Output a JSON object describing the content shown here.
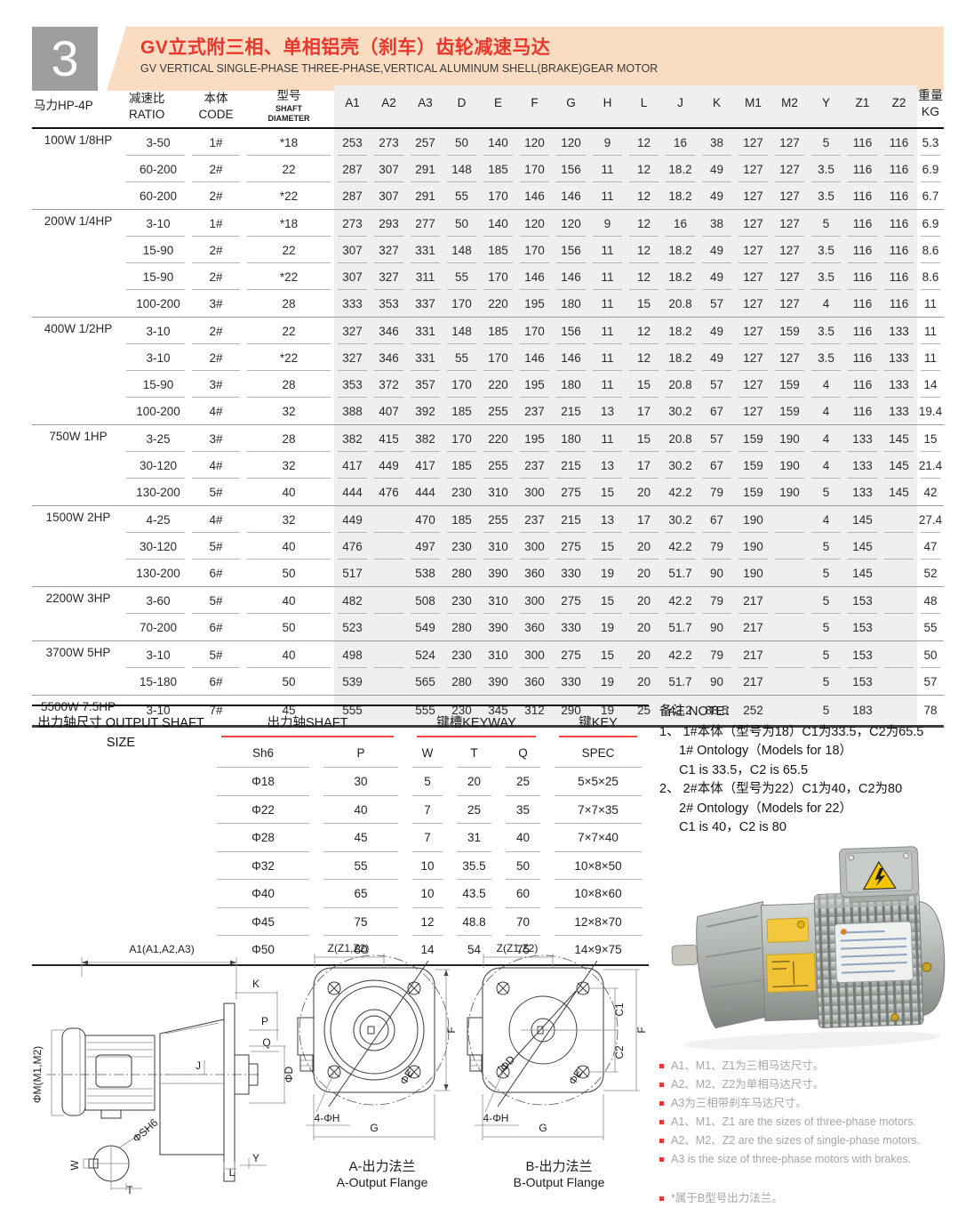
{
  "page": {
    "badge": "3",
    "title_zh": "GV立式附三相、单相铝壳（刹车）齿轮减速马达",
    "title_en": "GV VERTICAL SINGLE-PHASE THREE-PHASE,VERTICAL ALUMINUM SHELL(BRAKE)GEAR MOTOR",
    "colors": {
      "accent_red": "#e8372c",
      "band_peach": "#f9dcc2",
      "table_band_gray": "#efefef",
      "badge_gray": "#9e9e9e",
      "bullet_gray_text": "#a6a6a6"
    }
  },
  "main_table": {
    "col_headers": {
      "power": "马力HP-4P",
      "ratio_zh": "减速比",
      "ratio_en": "RATIO",
      "code_zh": "本体",
      "code_en": "CODE",
      "model_zh": "型号",
      "model_en1": "SHAFT",
      "model_en2": "DIAMETER",
      "dims": [
        "A1",
        "A2",
        "A3",
        "D",
        "E",
        "F",
        "G",
        "H",
        "L",
        "J",
        "K",
        "M1",
        "M2",
        "Y",
        "Z1",
        "Z2"
      ],
      "weight": "重量KG"
    },
    "groups": [
      {
        "power": "100W 1/8HP",
        "rows": [
          {
            "ratio": "3-50",
            "code": "1#",
            "model": "*18",
            "dims": [
              "253",
              "273",
              "257",
              "50",
              "140",
              "120",
              "120",
              "9",
              "12",
              "16",
              "38",
              "127",
              "127",
              "5",
              "116",
              "116"
            ],
            "weight": "5.3"
          },
          {
            "ratio": "60-200",
            "code": "2#",
            "model": "22",
            "dims": [
              "287",
              "307",
              "291",
              "148",
              "185",
              "170",
              "156",
              "11",
              "12",
              "18.2",
              "49",
              "127",
              "127",
              "3.5",
              "116",
              "116"
            ],
            "weight": "6.9"
          },
          {
            "ratio": "60-200",
            "code": "2#",
            "model": "*22",
            "dims": [
              "287",
              "307",
              "291",
              "55",
              "170",
              "146",
              "146",
              "11",
              "12",
              "18.2",
              "49",
              "127",
              "127",
              "3.5",
              "116",
              "116"
            ],
            "weight": "6.7"
          }
        ]
      },
      {
        "power": "200W 1/4HP",
        "rows": [
          {
            "ratio": "3-10",
            "code": "1#",
            "model": "*18",
            "dims": [
              "273",
              "293",
              "277",
              "50",
              "140",
              "120",
              "120",
              "9",
              "12",
              "16",
              "38",
              "127",
              "127",
              "5",
              "116",
              "116"
            ],
            "weight": "6.9"
          },
          {
            "ratio": "15-90",
            "code": "2#",
            "model": "22",
            "dims": [
              "307",
              "327",
              "331",
              "148",
              "185",
              "170",
              "156",
              "11",
              "12",
              "18.2",
              "49",
              "127",
              "127",
              "3.5",
              "116",
              "116"
            ],
            "weight": "8.6"
          },
          {
            "ratio": "15-90",
            "code": "2#",
            "model": "*22",
            "dims": [
              "307",
              "327",
              "311",
              "55",
              "170",
              "146",
              "146",
              "11",
              "12",
              "18.2",
              "49",
              "127",
              "127",
              "3.5",
              "116",
              "116"
            ],
            "weight": "8.6"
          },
          {
            "ratio": "100-200",
            "code": "3#",
            "model": "28",
            "dims": [
              "333",
              "353",
              "337",
              "170",
              "220",
              "195",
              "180",
              "11",
              "15",
              "20.8",
              "57",
              "127",
              "127",
              "4",
              "116",
              "116"
            ],
            "weight": "11"
          }
        ]
      },
      {
        "power": "400W 1/2HP",
        "rows": [
          {
            "ratio": "3-10",
            "code": "2#",
            "model": "22",
            "dims": [
              "327",
              "346",
              "331",
              "148",
              "185",
              "170",
              "156",
              "11",
              "12",
              "18.2",
              "49",
              "127",
              "159",
              "3.5",
              "116",
              "133"
            ],
            "weight": "11"
          },
          {
            "ratio": "3-10",
            "code": "2#",
            "model": "*22",
            "dims": [
              "327",
              "346",
              "331",
              "55",
              "170",
              "146",
              "146",
              "11",
              "12",
              "18.2",
              "49",
              "127",
              "127",
              "3.5",
              "116",
              "133"
            ],
            "weight": "11"
          },
          {
            "ratio": "15-90",
            "code": "3#",
            "model": "28",
            "dims": [
              "353",
              "372",
              "357",
              "170",
              "220",
              "195",
              "180",
              "11",
              "15",
              "20.8",
              "57",
              "127",
              "159",
              "4",
              "116",
              "133"
            ],
            "weight": "14"
          },
          {
            "ratio": "100-200",
            "code": "4#",
            "model": "32",
            "dims": [
              "388",
              "407",
              "392",
              "185",
              "255",
              "237",
              "215",
              "13",
              "17",
              "30.2",
              "67",
              "127",
              "159",
              "4",
              "116",
              "133"
            ],
            "weight": "19.4"
          }
        ]
      },
      {
        "power": "750W 1HP",
        "rows": [
          {
            "ratio": "3-25",
            "code": "3#",
            "model": "28",
            "dims": [
              "382",
              "415",
              "382",
              "170",
              "220",
              "195",
              "180",
              "11",
              "15",
              "20.8",
              "57",
              "159",
              "190",
              "4",
              "133",
              "145"
            ],
            "weight": "15"
          },
          {
            "ratio": "30-120",
            "code": "4#",
            "model": "32",
            "dims": [
              "417",
              "449",
              "417",
              "185",
              "255",
              "237",
              "215",
              "13",
              "17",
              "30.2",
              "67",
              "159",
              "190",
              "4",
              "133",
              "145"
            ],
            "weight": "21.4"
          },
          {
            "ratio": "130-200",
            "code": "5#",
            "model": "40",
            "dims": [
              "444",
              "476",
              "444",
              "230",
              "310",
              "300",
              "275",
              "15",
              "20",
              "42.2",
              "79",
              "159",
              "190",
              "5",
              "133",
              "145"
            ],
            "weight": "42"
          }
        ]
      },
      {
        "power": "1500W 2HP",
        "rows": [
          {
            "ratio": "4-25",
            "code": "4#",
            "model": "32",
            "dims": [
              "449",
              "",
              "470",
              "185",
              "255",
              "237",
              "215",
              "13",
              "17",
              "30.2",
              "67",
              "190",
              "",
              "4",
              "145",
              ""
            ],
            "weight": "27.4"
          },
          {
            "ratio": "30-120",
            "code": "5#",
            "model": "40",
            "dims": [
              "476",
              "",
              "497",
              "230",
              "310",
              "300",
              "275",
              "15",
              "20",
              "42.2",
              "79",
              "190",
              "",
              "5",
              "145",
              ""
            ],
            "weight": "47"
          },
          {
            "ratio": "130-200",
            "code": "6#",
            "model": "50",
            "dims": [
              "517",
              "",
              "538",
              "280",
              "390",
              "360",
              "330",
              "19",
              "20",
              "51.7",
              "90",
              "190",
              "",
              "5",
              "145",
              ""
            ],
            "weight": "52"
          }
        ]
      },
      {
        "power": "2200W 3HP",
        "rows": [
          {
            "ratio": "3-60",
            "code": "5#",
            "model": "40",
            "dims": [
              "482",
              "",
              "508",
              "230",
              "310",
              "300",
              "275",
              "15",
              "20",
              "42.2",
              "79",
              "217",
              "",
              "5",
              "153",
              ""
            ],
            "weight": "48"
          },
          {
            "ratio": "70-200",
            "code": "6#",
            "model": "50",
            "dims": [
              "523",
              "",
              "549",
              "280",
              "390",
              "360",
              "330",
              "19",
              "20",
              "51.7",
              "90",
              "217",
              "",
              "5",
              "153",
              ""
            ],
            "weight": "55"
          }
        ]
      },
      {
        "power": "3700W 5HP",
        "rows": [
          {
            "ratio": "3-10",
            "code": "5#",
            "model": "40",
            "dims": [
              "498",
              "",
              "524",
              "230",
              "310",
              "300",
              "275",
              "15",
              "20",
              "42.2",
              "79",
              "217",
              "",
              "5",
              "153",
              ""
            ],
            "weight": "50"
          },
          {
            "ratio": "15-180",
            "code": "6#",
            "model": "50",
            "dims": [
              "539",
              "",
              "565",
              "280",
              "390",
              "360",
              "330",
              "19",
              "20",
              "51.7",
              "90",
              "217",
              "",
              "5",
              "153",
              ""
            ],
            "weight": "57"
          }
        ]
      },
      {
        "power": "5500W 7.5HP",
        "rows": [
          {
            "ratio": "3-10",
            "code": "7#",
            "model": "45",
            "dims": [
              "555",
              "",
              "555",
              "230",
              "345",
              "312",
              "290",
              "19",
              "25",
              "42.2",
              "88.5",
              "252",
              "",
              "5",
              "183",
              ""
            ],
            "weight": "78"
          }
        ]
      }
    ]
  },
  "shaft_table": {
    "label_line1": "出力轴尺寸 OUTPUT SHAFT",
    "label_line2": "SIZE",
    "group_headers": [
      "出力轴SHAFT",
      "键槽KEYWAY",
      "键KEY"
    ],
    "sub_headers": [
      "Sh6",
      "P",
      "W",
      "T",
      "Q",
      "SPEC"
    ],
    "rows": [
      [
        "Φ18",
        "30",
        "5",
        "20",
        "25",
        "5×5×25"
      ],
      [
        "Φ22",
        "40",
        "7",
        "25",
        "35",
        "7×7×35"
      ],
      [
        "Φ28",
        "45",
        "7",
        "31",
        "40",
        "7×7×40"
      ],
      [
        "Φ32",
        "55",
        "10",
        "35.5",
        "50",
        "10×8×50"
      ],
      [
        "Φ40",
        "65",
        "10",
        "43.5",
        "60",
        "10×8×60"
      ],
      [
        "Φ45",
        "75",
        "12",
        "48.8",
        "70",
        "12×8×70"
      ],
      [
        "Φ50",
        "80",
        "14",
        "54",
        "75",
        "14×9×75"
      ]
    ]
  },
  "note": {
    "title": "备注 NOTE：",
    "lines": [
      {
        "text": "1、 1#本体（型号为18）C1为33.5，C2为65.5",
        "indent": false
      },
      {
        "text": "1# Ontology（Models for 18）",
        "indent": true
      },
      {
        "text": "C1 is 33.5，C2 is 65.5",
        "indent": true
      },
      {
        "text": "2、 2#本体（型号为22）C1为40，C2为80",
        "indent": false
      },
      {
        "text": "2# Ontology（Models for 22）",
        "indent": true
      },
      {
        "text": "C1 is 40，C2 is 80",
        "indent": true
      }
    ]
  },
  "bullets": [
    {
      "text": "A1、M1、Z1为三相马达尺寸。",
      "gap": false
    },
    {
      "text": "A2、M2、Z2为单相马达尺寸。",
      "gap": false
    },
    {
      "text": "A3为三相带刹车马达尺寸。",
      "gap": false
    },
    {
      "text": "A1、M1、Z1 are the sizes of three-phase motors.",
      "gap": false
    },
    {
      "text": "A2、M2、Z2 are the sizes of single-phase motors.",
      "gap": false
    },
    {
      "text": "A3 is the size of three-phase motors with brakes.",
      "gap": false
    },
    {
      "text": "*属于B型号出力法兰。",
      "gap": true
    }
  ],
  "drawings": {
    "side": {
      "a1": "A1(A1,A2,A3)",
      "k": "K",
      "p": "P",
      "q": "Q",
      "phi_d": "ΦD",
      "phi_m": "ΦM(M1,M2)",
      "j": "J",
      "l": "L",
      "y": "Y",
      "phi_sh6": "ΦSH6",
      "w": "W",
      "t": "T"
    },
    "flange_a": {
      "z": "Z(Z1,Z2)",
      "f": "F",
      "phi_e": "ΦE",
      "holes": "4-ΦH",
      "g": "G",
      "cap_zh": "A-出力法兰",
      "cap_en": "A-Output Flange"
    },
    "flange_b": {
      "z": "Z(Z1,Z2)",
      "c1": "C1",
      "c2": "C2",
      "f": "F",
      "phi_d": "ΦD",
      "phi_e": "ΦE",
      "holes": "4-ΦH",
      "g": "G",
      "cap_zh": "B-出力法兰",
      "cap_en": "B-Output Flange"
    }
  }
}
